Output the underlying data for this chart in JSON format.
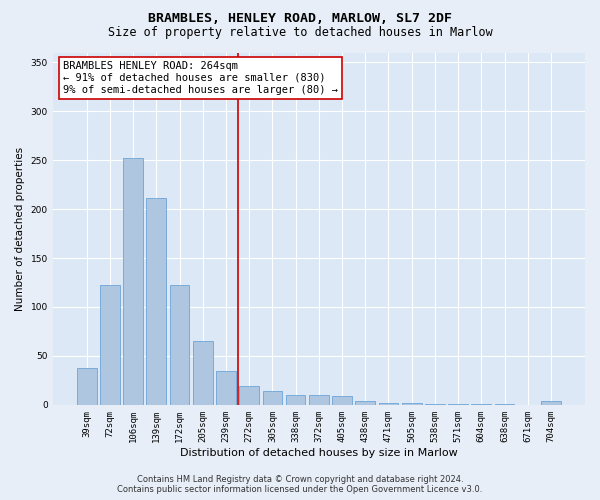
{
  "title": "BRAMBLES, HENLEY ROAD, MARLOW, SL7 2DF",
  "subtitle": "Size of property relative to detached houses in Marlow",
  "xlabel": "Distribution of detached houses by size in Marlow",
  "ylabel": "Number of detached properties",
  "categories": [
    "39sqm",
    "72sqm",
    "106sqm",
    "139sqm",
    "172sqm",
    "205sqm",
    "239sqm",
    "272sqm",
    "305sqm",
    "338sqm",
    "372sqm",
    "405sqm",
    "438sqm",
    "471sqm",
    "505sqm",
    "538sqm",
    "571sqm",
    "604sqm",
    "638sqm",
    "671sqm",
    "704sqm"
  ],
  "bar_values": [
    38,
    122,
    252,
    211,
    122,
    65,
    35,
    19,
    14,
    10,
    10,
    9,
    4,
    2,
    2,
    1,
    1,
    1,
    1,
    0,
    4
  ],
  "bar_color": "#aec6df",
  "bar_edgecolor": "#5b9bd5",
  "vline_color": "#cc0000",
  "annotation_text": "BRAMBLES HENLEY ROAD: 264sqm\n← 91% of detached houses are smaller (830)\n9% of semi-detached houses are larger (80) →",
  "annotation_box_facecolor": "#ffffff",
  "annotation_box_edgecolor": "#cc0000",
  "ylim": [
    0,
    360
  ],
  "yticks": [
    0,
    50,
    100,
    150,
    200,
    250,
    300,
    350
  ],
  "bg_color": "#e8eef7",
  "plot_bg_color": "#dce8f5",
  "grid_color": "#ffffff",
  "footer_text": "Contains HM Land Registry data © Crown copyright and database right 2024.\nContains public sector information licensed under the Open Government Licence v3.0.",
  "title_fontsize": 9.5,
  "subtitle_fontsize": 8.5,
  "xlabel_fontsize": 8,
  "ylabel_fontsize": 7.5,
  "tick_fontsize": 6.5,
  "annotation_fontsize": 7.5,
  "footer_fontsize": 6
}
